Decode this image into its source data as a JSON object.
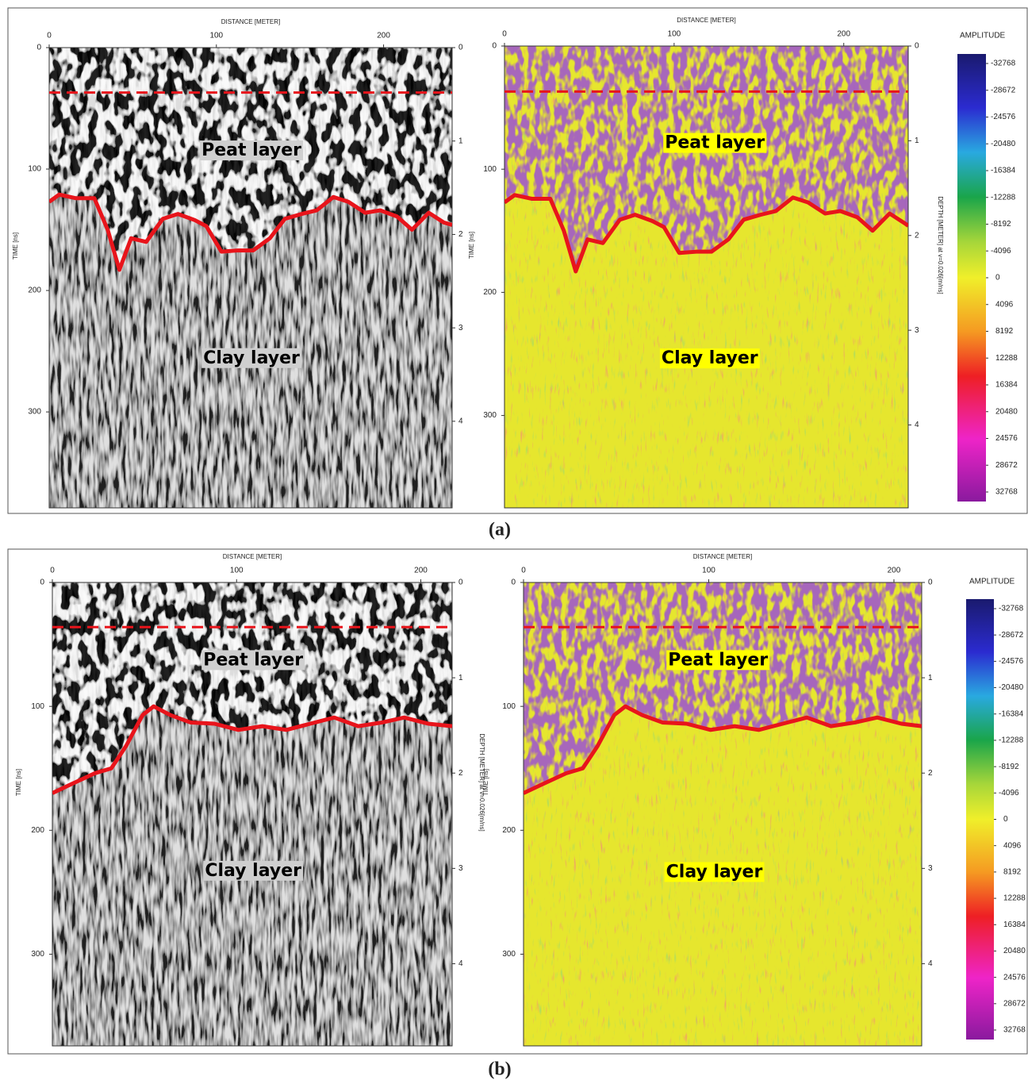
{
  "panel_labels": [
    "(a)",
    "(b)"
  ],
  "chart_data": [
    {
      "type": "radargram",
      "colormap": "gray",
      "xlabel": "DISTANCE [METER]",
      "ylabel": "TIME [ns]",
      "xlim": [
        0,
        241
      ],
      "xticks": [
        0,
        100,
        200
      ],
      "ylim": [
        0,
        379
      ],
      "yticks": [
        0,
        100,
        200,
        300
      ],
      "y2lim": [
        0,
        4.927
      ],
      "y2ticks": [
        0,
        1,
        2,
        3,
        4
      ],
      "annotations": [
        "Peat layer",
        "Clay layer"
      ],
      "series": [
        {
          "color": "#e8141b",
          "style": "dashed",
          "x": [
            0,
            241
          ],
          "values": [
            37,
            37
          ]
        },
        {
          "color": "#e8141b",
          "style": "solid",
          "x": [
            0,
            6,
            16,
            27,
            35,
            42,
            49,
            58,
            68,
            77,
            87,
            94,
            103,
            113,
            122,
            132,
            141,
            151,
            160,
            170,
            179,
            189,
            198,
            208,
            217,
            227,
            236,
            241
          ],
          "values": [
            127,
            121,
            124,
            124,
            150,
            183,
            157,
            160,
            141,
            137,
            142,
            147,
            168,
            167,
            167,
            157,
            141,
            137,
            134,
            123,
            127,
            136,
            134,
            139,
            150,
            136,
            144,
            146
          ]
        }
      ]
    },
    {
      "type": "radargram",
      "colormap": "amplitude",
      "xlabel": "DISTANCE [METER]",
      "ylabel": "TIME [ns]",
      "y2label": "DEPTH [METER] at v=0.026[m/ns]",
      "xlim": [
        0,
        238
      ],
      "xticks": [
        0,
        100,
        200
      ],
      "ylim": [
        0,
        375
      ],
      "yticks": [
        0,
        100,
        200,
        300
      ],
      "y2lim": [
        0,
        4.875
      ],
      "y2ticks": [
        0,
        1,
        2,
        3,
        4
      ],
      "annotations": [
        "Peat layer",
        "Clay layer"
      ],
      "colorbar": {
        "title": "AMPLITUDE",
        "ticks": [
          -32768,
          -28672,
          -24576,
          -20480,
          -16384,
          -12288,
          -8192,
          -4096,
          0,
          4096,
          8192,
          12288,
          16384,
          20480,
          24576,
          28672,
          32768
        ]
      },
      "series": [
        {
          "color": "#e8141b",
          "style": "dashed",
          "x": [
            0,
            238
          ],
          "values": [
            37,
            37
          ]
        },
        {
          "color": "#e8141b",
          "style": "solid",
          "x": [
            0,
            6,
            16,
            27,
            35,
            42,
            49,
            58,
            68,
            77,
            87,
            94,
            103,
            113,
            122,
            132,
            141,
            151,
            160,
            170,
            179,
            189,
            198,
            208,
            217,
            227,
            236,
            238
          ],
          "values": [
            127,
            121,
            124,
            124,
            150,
            183,
            157,
            160,
            141,
            137,
            142,
            147,
            168,
            167,
            167,
            157,
            141,
            137,
            134,
            123,
            127,
            136,
            134,
            139,
            150,
            136,
            144,
            146
          ]
        }
      ]
    },
    {
      "type": "radargram",
      "colormap": "gray",
      "xlabel": "DISTANCE [METER]",
      "ylabel": "TIME [ns]",
      "y2label": "DEPTH [METER] at v=0.026[m/ns]",
      "xlim": [
        0,
        217
      ],
      "xticks": [
        0,
        100,
        200
      ],
      "ylim": [
        0,
        374
      ],
      "yticks": [
        0,
        100,
        200,
        300
      ],
      "y2lim": [
        0,
        4.862
      ],
      "y2ticks": [
        0,
        1,
        2,
        3,
        4
      ],
      "annotations": [
        "Peat layer",
        "Clay layer"
      ],
      "series": [
        {
          "color": "#e8141b",
          "style": "dashed",
          "x": [
            0,
            217
          ],
          "values": [
            36,
            36
          ]
        },
        {
          "color": "#e8141b",
          "style": "solid",
          "x": [
            0,
            10,
            23,
            32,
            40,
            49,
            55,
            64,
            75,
            88,
            101,
            114,
            127,
            140,
            153,
            166,
            179,
            191,
            204,
            217
          ],
          "values": [
            170,
            163,
            154,
            150,
            132,
            107,
            100,
            107,
            113,
            114,
            119,
            116,
            119,
            114,
            109,
            116,
            113,
            109,
            114,
            116
          ]
        }
      ]
    },
    {
      "type": "radargram",
      "colormap": "amplitude",
      "xlabel": "DISTANCE [METER]",
      "ylabel": "TIME [ns]",
      "xlim": [
        0,
        215
      ],
      "xticks": [
        0,
        100,
        200
      ],
      "ylim": [
        0,
        374
      ],
      "yticks": [
        0,
        100,
        200,
        300
      ],
      "y2lim": [
        0,
        4.862
      ],
      "y2ticks": [
        0,
        1,
        2,
        3,
        4
      ],
      "annotations": [
        "Peat layer",
        "Clay layer"
      ],
      "colorbar": {
        "title": "AMPLITUDE",
        "ticks": [
          -32768,
          -28672,
          -24576,
          -20480,
          -16384,
          -12288,
          -8192,
          -4096,
          0,
          4096,
          8192,
          12288,
          16384,
          20480,
          24576,
          28672,
          32768
        ]
      },
      "series": [
        {
          "color": "#e8141b",
          "style": "dashed",
          "x": [
            0,
            215
          ],
          "values": [
            36,
            36
          ]
        },
        {
          "color": "#e8141b",
          "style": "solid",
          "x": [
            0,
            10,
            23,
            32,
            40,
            49,
            55,
            64,
            75,
            88,
            101,
            114,
            127,
            140,
            153,
            166,
            179,
            191,
            204,
            215
          ],
          "values": [
            170,
            163,
            154,
            150,
            132,
            107,
            100,
            107,
            113,
            114,
            119,
            116,
            119,
            114,
            109,
            116,
            113,
            109,
            114,
            116
          ]
        }
      ]
    }
  ]
}
